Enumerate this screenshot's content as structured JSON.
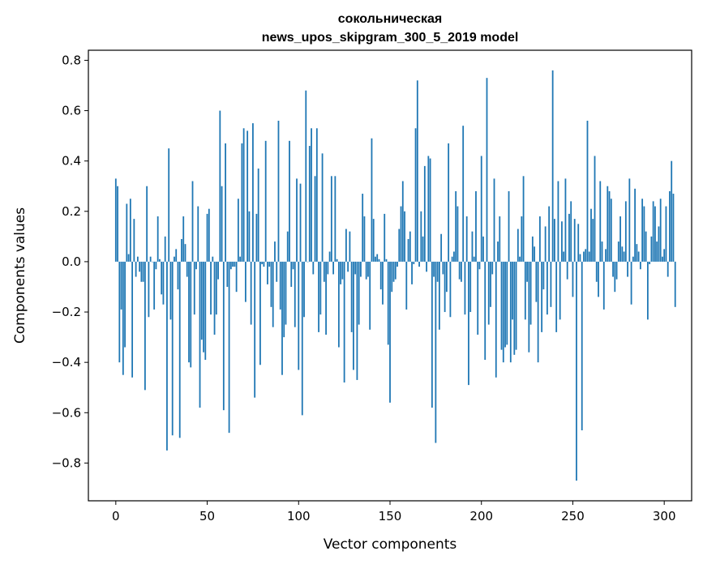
{
  "chart_data": {
    "type": "bar",
    "title_line1": "сокольническая",
    "title_line2": "news_upos_skipgram_300_5_2019 model",
    "xlabel": "Vector components",
    "ylabel": "Components values",
    "xlim": [
      -15,
      315
    ],
    "ylim": [
      -0.95,
      0.84
    ],
    "xticks": [
      0,
      50,
      100,
      150,
      200,
      250,
      300
    ],
    "xtick_labels": [
      "0",
      "50",
      "100",
      "150",
      "200",
      "250",
      "300"
    ],
    "yticks": [
      -0.8,
      -0.6,
      -0.4,
      -0.2,
      0.0,
      0.2,
      0.4,
      0.6,
      0.8
    ],
    "ytick_labels": [
      "−0.8",
      "−0.6",
      "−0.4",
      "−0.2",
      "0.0",
      "0.2",
      "0.4",
      "0.6",
      "0.8"
    ],
    "bar_color": "#1f77b4",
    "values": [
      0.33,
      0.3,
      -0.4,
      -0.19,
      -0.45,
      -0.34,
      0.23,
      0.03,
      0.25,
      -0.46,
      0.17,
      -0.06,
      0.02,
      -0.04,
      -0.08,
      -0.08,
      -0.51,
      0.3,
      -0.22,
      0.02,
      0.0,
      -0.19,
      -0.03,
      0.18,
      0.01,
      -0.13,
      -0.17,
      0.1,
      -0.75,
      0.45,
      -0.23,
      -0.69,
      0.02,
      0.05,
      -0.11,
      -0.7,
      0.09,
      0.18,
      0.07,
      -0.06,
      -0.4,
      -0.42,
      0.32,
      -0.21,
      -0.03,
      0.22,
      -0.58,
      -0.31,
      -0.36,
      -0.39,
      0.19,
      0.21,
      -0.21,
      0.02,
      -0.29,
      -0.21,
      -0.07,
      0.6,
      0.3,
      -0.59,
      0.47,
      -0.1,
      -0.68,
      -0.03,
      -0.02,
      -0.02,
      -0.12,
      0.25,
      0.02,
      0.47,
      0.53,
      -0.16,
      0.52,
      0.2,
      -0.25,
      0.55,
      -0.54,
      0.19,
      0.37,
      -0.41,
      -0.01,
      -0.02,
      0.48,
      -0.09,
      -0.02,
      -0.18,
      -0.26,
      0.08,
      -0.08,
      0.56,
      -0.19,
      -0.45,
      -0.3,
      -0.25,
      0.12,
      0.48,
      -0.1,
      -0.03,
      -0.26,
      0.33,
      -0.43,
      0.31,
      -0.61,
      -0.22,
      0.68,
      0.0,
      0.46,
      0.53,
      -0.05,
      0.34,
      0.53,
      -0.28,
      -0.21,
      0.43,
      -0.08,
      -0.29,
      -0.05,
      0.04,
      0.34,
      -0.05,
      0.34,
      0.01,
      -0.34,
      -0.09,
      -0.07,
      -0.48,
      0.13,
      -0.04,
      0.12,
      -0.28,
      -0.43,
      -0.05,
      -0.47,
      -0.25,
      -0.06,
      0.27,
      0.18,
      -0.07,
      -0.06,
      -0.27,
      0.49,
      0.17,
      0.02,
      0.03,
      0.01,
      -0.11,
      -0.17,
      0.19,
      0.01,
      -0.33,
      -0.56,
      -0.12,
      -0.08,
      -0.07,
      -0.02,
      0.13,
      0.22,
      0.32,
      0.2,
      -0.19,
      0.09,
      0.12,
      -0.09,
      -0.01,
      0.53,
      0.72,
      -0.02,
      0.2,
      0.1,
      0.38,
      -0.04,
      0.42,
      0.41,
      -0.58,
      -0.06,
      -0.72,
      -0.08,
      -0.27,
      0.11,
      -0.05,
      -0.2,
      -0.12,
      0.47,
      -0.22,
      0.02,
      0.04,
      0.28,
      0.22,
      -0.07,
      -0.08,
      0.54,
      -0.21,
      0.18,
      -0.49,
      -0.2,
      0.12,
      0.02,
      0.28,
      -0.29,
      -0.03,
      0.42,
      0.1,
      -0.39,
      0.73,
      -0.25,
      -0.18,
      -0.05,
      0.33,
      -0.46,
      0.08,
      0.18,
      -0.35,
      -0.4,
      -0.34,
      -0.33,
      0.28,
      -0.4,
      -0.23,
      -0.37,
      -0.35,
      0.13,
      0.02,
      0.18,
      0.34,
      -0.23,
      -0.08,
      -0.36,
      -0.25,
      0.1,
      0.06,
      -0.16,
      -0.4,
      0.18,
      -0.28,
      -0.11,
      0.14,
      -0.21,
      0.22,
      -0.18,
      0.76,
      0.17,
      -0.28,
      0.32,
      -0.23,
      0.16,
      0.04,
      0.33,
      -0.07,
      0.19,
      0.24,
      -0.14,
      0.17,
      -0.87,
      0.15,
      0.03,
      -0.67,
      0.04,
      0.05,
      0.56,
      0.04,
      0.21,
      0.17,
      0.42,
      -0.08,
      -0.14,
      0.32,
      0.08,
      -0.19,
      0.05,
      0.3,
      0.28,
      0.25,
      -0.06,
      -0.12,
      -0.07,
      0.08,
      0.18,
      0.06,
      0.04,
      0.24,
      -0.06,
      0.33,
      -0.17,
      0.02,
      0.29,
      0.07,
      0.04,
      -0.03,
      0.25,
      0.22,
      0.12,
      -0.23,
      -0.01,
      0.1,
      0.24,
      0.22,
      0.08,
      0.14,
      0.25,
      0.02,
      0.05,
      0.22,
      -0.06,
      0.28,
      0.4,
      0.27,
      -0.18
    ]
  }
}
